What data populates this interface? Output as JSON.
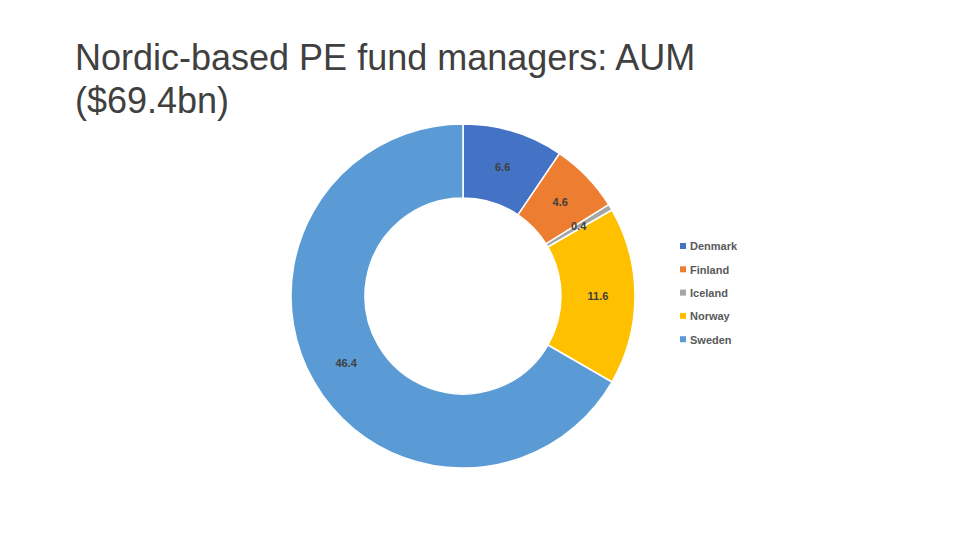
{
  "chart_data": {
    "type": "pie",
    "title": "Nordic-based PE fund managers: AUM ($69.4bn)",
    "categories": [
      "Denmark",
      "Finland",
      "Iceland",
      "Norway",
      "Sweden"
    ],
    "values": [
      6.6,
      4.6,
      0.4,
      11.6,
      46.4
    ],
    "colors": [
      "#4472c4",
      "#ed7d31",
      "#a5a5a5",
      "#ffc000",
      "#5b9bd5"
    ],
    "data_labels": true,
    "legend": "right"
  }
}
